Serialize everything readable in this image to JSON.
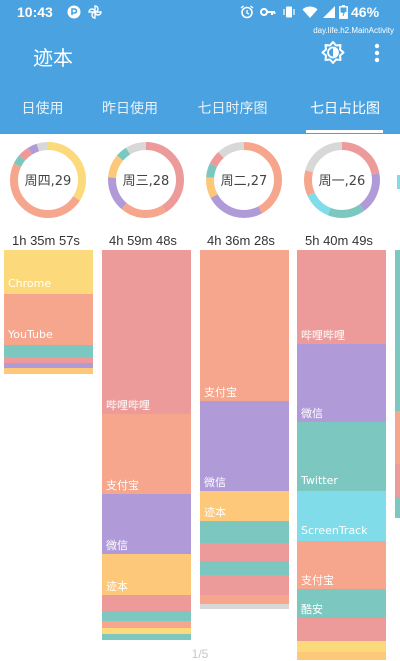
{
  "status_bar": {
    "time": "10:43",
    "battery": "46%",
    "icons": [
      "p-logo-icon",
      "pinwheel-icon",
      "alarm-icon",
      "key-icon",
      "vibrate-icon",
      "wifi-icon",
      "signal-icon",
      "battery-icon"
    ]
  },
  "app_bar": {
    "title": "迹本",
    "activity": "day.life.h2.MainActivity",
    "actions": [
      "theme-toggle-icon",
      "more-vert-icon"
    ]
  },
  "tabs": [
    {
      "label": "日使用"
    },
    {
      "label": "昨日使用"
    },
    {
      "label": "七日时序图"
    },
    {
      "label": "七日占比图",
      "selected": true
    }
  ],
  "colors": {
    "primary": "#4aa3e0",
    "pink": "#ec9a9a",
    "salmon": "#f6a68c",
    "purple": "#b09bd8",
    "yellow": "#fcd97a",
    "orange": "#fdc879",
    "teal": "#7cc8c0",
    "cyan": "#80dce8",
    "gray": "#d8d8d8"
  },
  "days": [
    {
      "label": "周四,29",
      "duration": "1h 35m 57s",
      "ring": [
        [
          "yellow",
          0.34
        ],
        [
          "salmon",
          0.48
        ],
        [
          "teal",
          0.04
        ],
        [
          "pink",
          0.05
        ],
        [
          "purple",
          0.04
        ],
        [
          "gray",
          0.05
        ]
      ],
      "apps": [
        {
          "name": "Chrome",
          "color": "yellow",
          "share": 0.355
        },
        {
          "name": "YouTube",
          "color": "salmon",
          "share": 0.415
        },
        {
          "name": "",
          "color": "teal",
          "share": 0.09
        },
        {
          "name": "",
          "color": "pink",
          "share": 0.05
        },
        {
          "name": "",
          "color": "purple",
          "share": 0.04
        },
        {
          "name": "",
          "color": "orange",
          "share": 0.05
        }
      ]
    },
    {
      "label": "周三,28",
      "duration": "4h 59m 48s",
      "ring": [
        [
          "pink",
          0.41
        ],
        [
          "salmon",
          0.2
        ],
        [
          "purple",
          0.15
        ],
        [
          "orange",
          0.1
        ],
        [
          "teal",
          0.05
        ],
        [
          "gray",
          0.09
        ]
      ],
      "apps": [
        {
          "name": "哔哩哔哩",
          "color": "pink",
          "share": 0.42
        },
        {
          "name": "支付宝",
          "color": "salmon",
          "share": 0.205
        },
        {
          "name": "微信",
          "color": "purple",
          "share": 0.155
        },
        {
          "name": "迹本",
          "color": "orange",
          "share": 0.105
        },
        {
          "name": "",
          "color": "pink",
          "share": 0.04
        },
        {
          "name": "",
          "color": "teal",
          "share": 0.025
        },
        {
          "name": "",
          "color": "salmon",
          "share": 0.02
        },
        {
          "name": "",
          "color": "yellow",
          "share": 0.015
        },
        {
          "name": "",
          "color": "teal",
          "share": 0.015
        }
      ]
    },
    {
      "label": "周二,27",
      "duration": "4h 36m 28s",
      "ring": [
        [
          "salmon",
          0.42
        ],
        [
          "purple",
          0.25
        ],
        [
          "orange",
          0.09
        ],
        [
          "teal",
          0.06
        ],
        [
          "pink",
          0.06
        ],
        [
          "gray",
          0.12
        ]
      ],
      "apps": [
        {
          "name": "支付宝",
          "color": "salmon",
          "share": 0.42
        },
        {
          "name": "微信",
          "color": "purple",
          "share": 0.25
        },
        {
          "name": "迹本",
          "color": "orange",
          "share": 0.085
        },
        {
          "name": "",
          "color": "teal",
          "share": 0.06
        },
        {
          "name": "",
          "color": "pink",
          "share": 0.05
        },
        {
          "name": "",
          "color": "teal",
          "share": 0.04
        },
        {
          "name": "",
          "color": "pink",
          "share": 0.055
        },
        {
          "name": "",
          "color": "salmon",
          "share": 0.025
        },
        {
          "name": "",
          "color": "gray",
          "share": 0.015
        }
      ]
    },
    {
      "label": "周一,26",
      "duration": "5h 40m 49s",
      "ring": [
        [
          "pink",
          0.22
        ],
        [
          "purple",
          0.18
        ],
        [
          "teal",
          0.16
        ],
        [
          "cyan",
          0.12
        ],
        [
          "salmon",
          0.11
        ],
        [
          "gray",
          0.21
        ]
      ],
      "apps": [
        {
          "name": "哔哩哔哩",
          "color": "pink",
          "share": 0.225
        },
        {
          "name": "微信",
          "color": "purple",
          "share": 0.185
        },
        {
          "name": "Twitter",
          "color": "teal",
          "share": 0.165
        },
        {
          "name": "ScreenTrack",
          "color": "cyan",
          "share": 0.12
        },
        {
          "name": "支付宝",
          "color": "salmon",
          "share": 0.115
        },
        {
          "name": "酷安",
          "color": "teal",
          "share": 0.07
        },
        {
          "name": "",
          "color": "pink",
          "share": 0.055
        },
        {
          "name": "",
          "color": "yellow",
          "share": 0.025
        },
        {
          "name": "",
          "color": "orange",
          "share": 0.02
        }
      ]
    }
  ],
  "peek_colors": [
    "teal",
    "salmon",
    "pink",
    "teal"
  ],
  "page_indicator": "1/5"
}
